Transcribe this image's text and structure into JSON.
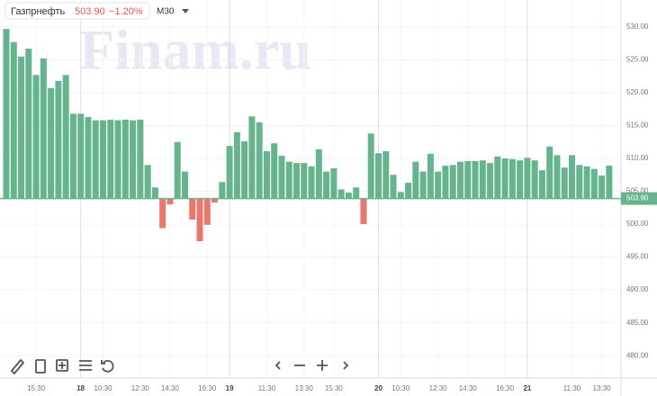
{
  "header": {
    "ticker": "Газпрнефть",
    "change": "−1.20%",
    "interval": "M30",
    "watermark": "Finam.ru"
  },
  "chart_data": {
    "type": "baseline-bar",
    "baseline": {
      "value": 503.9,
      "label": "503.90"
    },
    "up_color": "#66b48e",
    "down_color": "#e8786e",
    "grid": true,
    "ylim": [
      476.6,
      534.1
    ],
    "yticks": [
      {
        "value": 480,
        "label": "480.00"
      },
      {
        "value": 485,
        "label": "485.00"
      },
      {
        "value": 490,
        "label": "490.00"
      },
      {
        "value": 495,
        "label": "495.00"
      },
      {
        "value": 500,
        "label": "500.00"
      },
      {
        "value": 505,
        "label": "505.00"
      },
      {
        "value": 510,
        "label": "510.00"
      },
      {
        "value": 515,
        "label": "515.00"
      },
      {
        "value": 520,
        "label": "520.00"
      },
      {
        "value": 525,
        "label": "525.00"
      },
      {
        "value": 530,
        "label": "530.00"
      }
    ],
    "categories": [
      null,
      null,
      null,
      null,
      "15:30",
      null,
      null,
      null,
      null,
      null,
      "18",
      null,
      null,
      "10:30",
      null,
      null,
      null,
      null,
      "12:30",
      null,
      null,
      null,
      "14:30",
      null,
      null,
      null,
      null,
      "16:30",
      null,
      null,
      "19",
      null,
      null,
      null,
      null,
      "11:30",
      null,
      null,
      null,
      null,
      "13:30",
      null,
      null,
      null,
      "15:30",
      null,
      null,
      null,
      null,
      null,
      "20",
      null,
      null,
      "10:30",
      null,
      null,
      null,
      null,
      "12:30",
      null,
      null,
      null,
      "14:30",
      null,
      null,
      null,
      null,
      "16:30",
      null,
      null,
      "21",
      null,
      null,
      null,
      null,
      null,
      "11:30",
      null,
      null,
      null,
      "13:30",
      null
    ],
    "values": [
      529.7,
      527.7,
      525.5,
      526.7,
      522.7,
      525.2,
      520.7,
      521.8,
      522.7,
      516.8,
      516.8,
      516.3,
      515.8,
      515.8,
      515.9,
      515.8,
      515.9,
      515.8,
      515.9,
      509.0,
      505.6,
      499.4,
      503.0,
      512.5,
      508.0,
      500.7,
      497.4,
      499.9,
      503.3,
      506.4,
      511.9,
      514.0,
      512.6,
      516.4,
      515.5,
      511.1,
      512.3,
      510.4,
      509.5,
      509.3,
      509.3,
      508.8,
      511.4,
      508.0,
      508.5,
      505.3,
      504.8,
      505.6,
      500.0,
      513.8,
      510.8,
      511.1,
      507.5,
      504.9,
      506.3,
      509.5,
      508.0,
      510.7,
      508.0,
      508.9,
      509.0,
      509.5,
      509.6,
      509.6,
      509.7,
      509.3,
      510.3,
      510.0,
      509.9,
      509.7,
      510.1,
      509.7,
      508.2,
      511.8,
      510.5,
      508.6,
      510.5,
      509.0,
      508.8,
      508.4,
      507.4,
      508.9
    ]
  }
}
